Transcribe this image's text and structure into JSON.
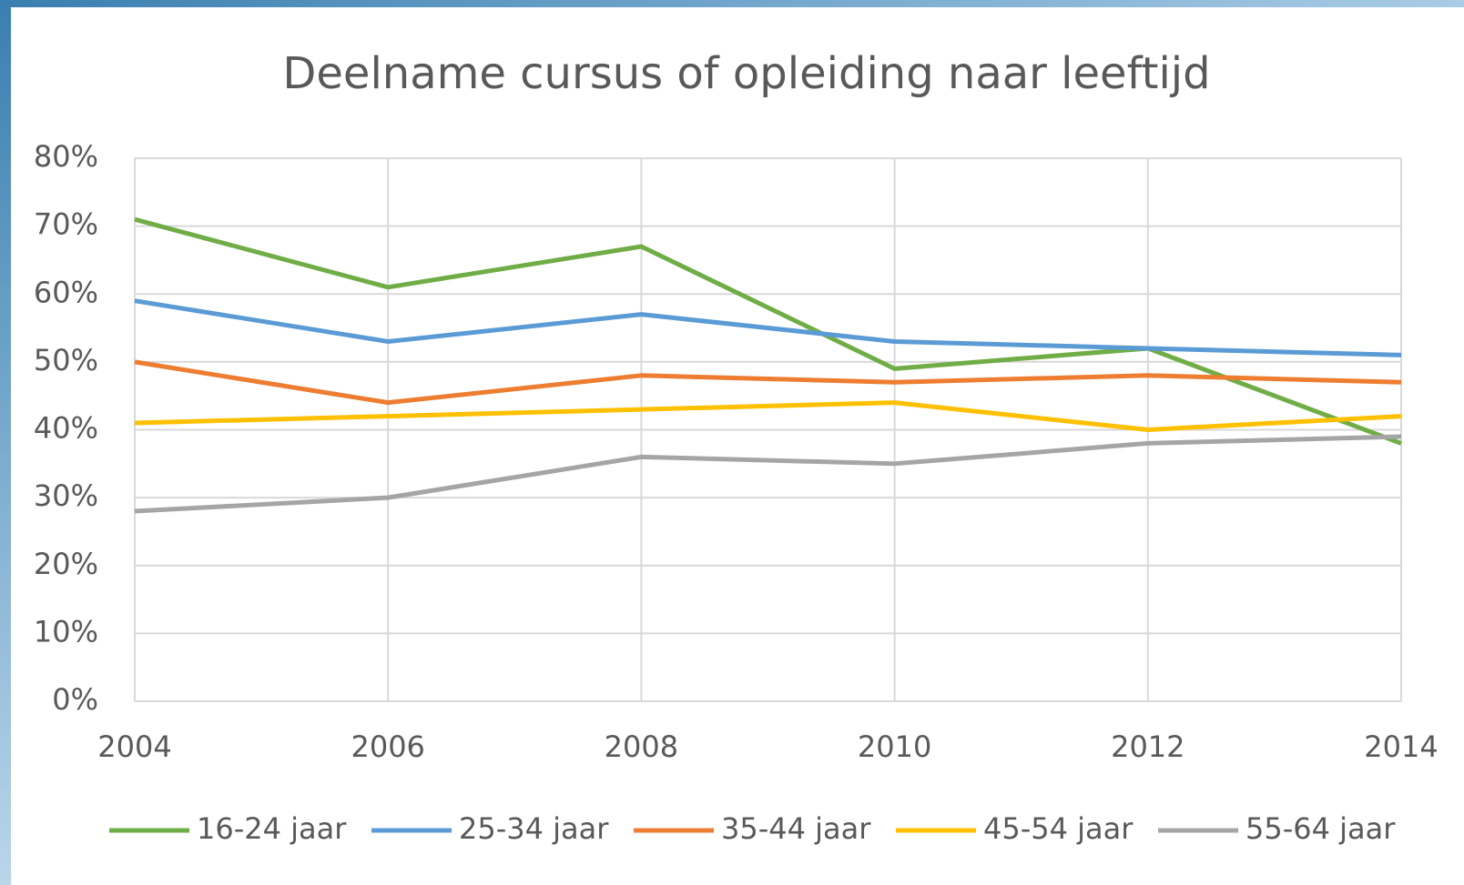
{
  "chart_data": {
    "type": "line",
    "title": "Deelname cursus of opleiding naar leeftijd",
    "x": [
      2004,
      2006,
      2008,
      2010,
      2012,
      2014
    ],
    "xlim": [
      2004,
      2014
    ],
    "xticks": [
      2004,
      2006,
      2008,
      2010,
      2012,
      2014
    ],
    "ylim": [
      0,
      80
    ],
    "yticks": [
      {
        "value": 0,
        "label": "0%"
      },
      {
        "value": 10,
        "label": "10%"
      },
      {
        "value": 20,
        "label": "20%"
      },
      {
        "value": 30,
        "label": "30%"
      },
      {
        "value": 40,
        "label": "40%"
      },
      {
        "value": 50,
        "label": "50%"
      },
      {
        "value": 60,
        "label": "60%"
      },
      {
        "value": 70,
        "label": "70%"
      },
      {
        "value": 80,
        "label": "80%"
      }
    ],
    "grid": true,
    "legend": "bottom",
    "series": [
      {
        "name": "16-24 jaar",
        "color": "#70ad47",
        "values": [
          71,
          61,
          67,
          49,
          52,
          38
        ]
      },
      {
        "name": "25-34 jaar",
        "color": "#5b9bd5",
        "values": [
          59,
          53,
          57,
          53,
          52,
          51
        ]
      },
      {
        "name": "35-44 jaar",
        "color": "#ed7d31",
        "values": [
          50,
          44,
          48,
          47,
          48,
          47
        ]
      },
      {
        "name": "45-54 jaar",
        "color": "#ffc000",
        "values": [
          41,
          42,
          43,
          44,
          40,
          42
        ]
      },
      {
        "name": "55-64 jaar",
        "color": "#a5a5a5",
        "values": [
          28,
          30,
          36,
          35,
          38,
          39
        ]
      }
    ]
  }
}
